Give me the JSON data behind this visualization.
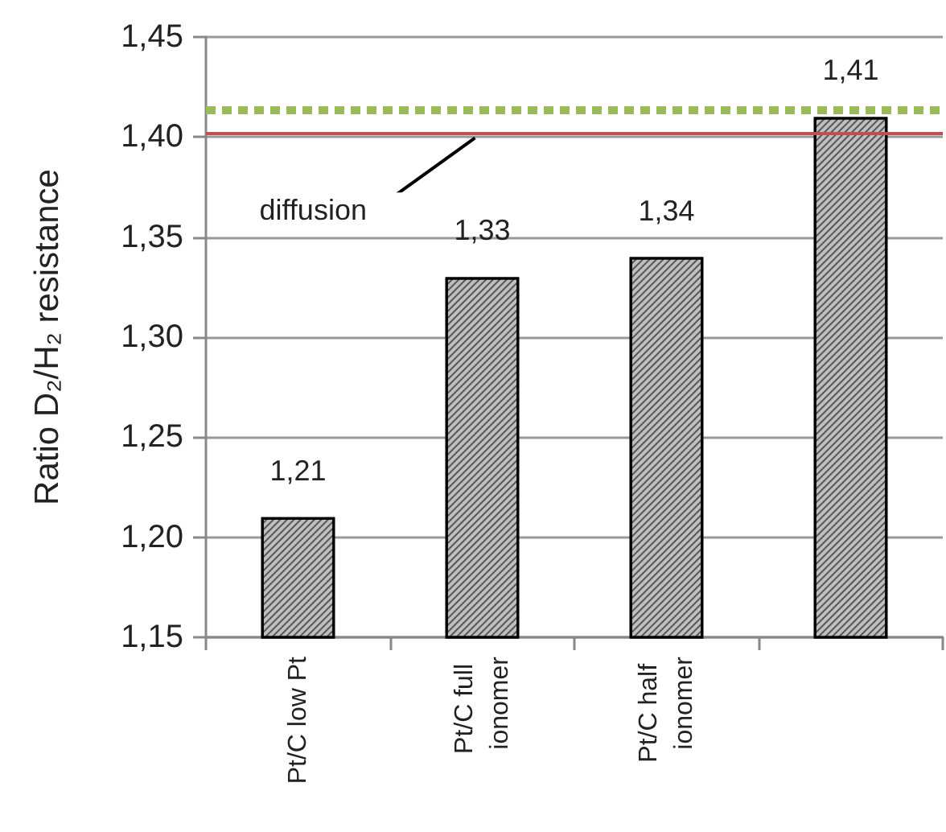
{
  "chart_data": {
    "type": "bar",
    "ylabel": "Ratio D₂/H₂ resistance",
    "categories": [
      "Pt/C low Pt",
      "Pt/C full ionomer",
      "Pt/C half ionomer",
      null
    ],
    "values": [
      1.21,
      1.33,
      1.34,
      1.41
    ],
    "value_labels": [
      "1,21",
      "1,33",
      "1,34",
      "1,41"
    ],
    "color": "#bfbfbf",
    "ylim": [
      1.15,
      1.45
    ],
    "yticks": [
      {
        "value": 1.15,
        "label": "1,15"
      },
      {
        "value": 1.2,
        "label": "1,20"
      },
      {
        "value": 1.25,
        "label": "1,25"
      },
      {
        "value": 1.3,
        "label": "1,30"
      },
      {
        "value": 1.35,
        "label": "1,35"
      },
      {
        "value": 1.4,
        "label": "1,40"
      },
      {
        "value": 1.45,
        "label": "1,45"
      }
    ],
    "grid": "y",
    "ref_lines": [
      {
        "axis": "y",
        "value": 1.414,
        "color": "#9bbb59",
        "line_style": "dashed"
      },
      {
        "axis": "y",
        "value": 1.402,
        "color": "#c0504d",
        "line_style": "solid",
        "label": "diffusion"
      }
    ]
  }
}
